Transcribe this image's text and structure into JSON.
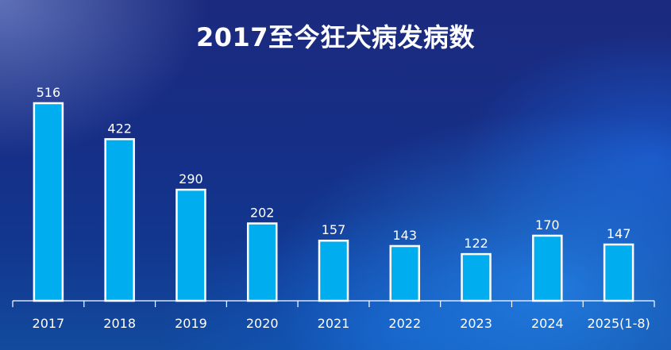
{
  "chart_data": {
    "type": "bar",
    "title": "2017至今狂犬病发病数",
    "xlabel": "",
    "ylabel": "",
    "categories": [
      "2017",
      "2018",
      "2019",
      "2020",
      "2021",
      "2022",
      "2023",
      "2024",
      "2025(1-8)"
    ],
    "values": [
      516,
      422,
      290,
      202,
      157,
      143,
      122,
      170,
      147
    ],
    "ylim": [
      0,
      516
    ],
    "grid": false,
    "legend": "none",
    "data_labels": true
  },
  "colors": {
    "bar_fill": "#00adef",
    "bar_stroke": "#ffffff",
    "axis": "#ffffff",
    "text": "#ffffff"
  }
}
